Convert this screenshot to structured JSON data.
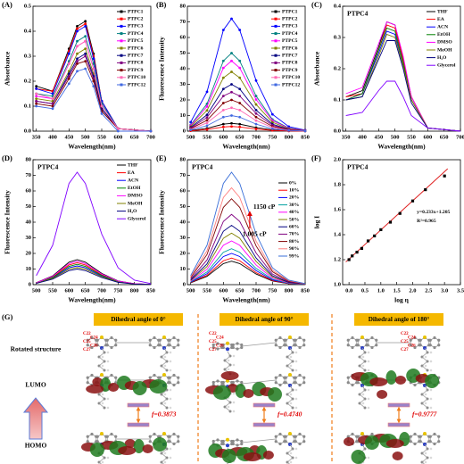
{
  "chart_data": [
    {
      "type": "line",
      "label": "(A)",
      "xlabel": "Wavelength(nm)",
      "ylabel": "Absorbance",
      "x": [
        350,
        400,
        450,
        475,
        500,
        525,
        550,
        600,
        700
      ],
      "xlim": [
        340,
        700
      ],
      "xticks": [
        350,
        400,
        450,
        500,
        550,
        600,
        650,
        700
      ],
      "ylim": [
        0,
        0.5
      ],
      "yticks": [
        {
          "value": 0,
          "label": "0.0"
        },
        0.1,
        0.2,
        0.3,
        0.4,
        0.5
      ],
      "markers": true,
      "legend": "upper right",
      "series": [
        {
          "name": "PTPC1",
          "color": "#000000",
          "values": [
            0.18,
            0.16,
            0.33,
            0.42,
            0.44,
            0.31,
            0.12,
            0.01,
            0
          ]
        },
        {
          "name": "PTPC2",
          "color": "#ff0000",
          "values": [
            0.17,
            0.16,
            0.32,
            0.41,
            0.43,
            0.3,
            0.12,
            0.01,
            0
          ]
        },
        {
          "name": "PTPC3",
          "color": "#0000ff",
          "values": [
            0.17,
            0.15,
            0.31,
            0.4,
            0.42,
            0.29,
            0.12,
            0.01,
            0
          ]
        },
        {
          "name": "PTPC4",
          "color": "#008080",
          "values": [
            0.15,
            0.14,
            0.28,
            0.36,
            0.38,
            0.27,
            0.11,
            0.01,
            0
          ]
        },
        {
          "name": "PTPC5",
          "color": "#ff00ff",
          "values": [
            0.14,
            0.13,
            0.27,
            0.34,
            0.36,
            0.25,
            0.1,
            0.01,
            0
          ]
        },
        {
          "name": "PTPC6",
          "color": "#808000",
          "values": [
            0.13,
            0.12,
            0.24,
            0.31,
            0.33,
            0.23,
            0.09,
            0.01,
            0
          ]
        },
        {
          "name": "PTPC7",
          "color": "#000080",
          "values": [
            0.12,
            0.11,
            0.23,
            0.29,
            0.31,
            0.22,
            0.09,
            0.01,
            0
          ]
        },
        {
          "name": "PTPC8",
          "color": "#800080",
          "values": [
            0.12,
            0.11,
            0.22,
            0.28,
            0.3,
            0.21,
            0.08,
            0.01,
            0
          ]
        },
        {
          "name": "PTPC9",
          "color": "#800000",
          "values": [
            0.11,
            0.1,
            0.21,
            0.27,
            0.28,
            0.2,
            0.08,
            0.01,
            0
          ]
        },
        {
          "name": "PTPC10",
          "color": "#ff69b4",
          "values": [
            0.15,
            0.13,
            0.27,
            0.34,
            0.36,
            0.25,
            0.1,
            0.01,
            0
          ]
        },
        {
          "name": "PTPC12",
          "color": "#4169e1",
          "values": [
            0.1,
            0.09,
            0.19,
            0.24,
            0.25,
            0.18,
            0.07,
            0,
            0
          ]
        }
      ]
    },
    {
      "type": "line",
      "label": "(B)",
      "xlabel": "Wavelength(nm)",
      "ylabel": "Fluorescence Intensity",
      "x": [
        500,
        550,
        600,
        625,
        650,
        700,
        750,
        800,
        850
      ],
      "xlim": [
        490,
        850
      ],
      "xticks": [
        500,
        550,
        600,
        650,
        700,
        750,
        800,
        850
      ],
      "ylim": [
        0,
        80
      ],
      "yticks": [
        0,
        10,
        20,
        30,
        40,
        50,
        60,
        70,
        80
      ],
      "markers": true,
      "legend": "upper right",
      "series": [
        {
          "name": "PTPC1",
          "color": "#000000",
          "values": [
            0.4,
            1.8,
            4.5,
            5,
            4.5,
            2.3,
            0.8,
            0.2,
            0.1
          ]
        },
        {
          "name": "PTPC2",
          "color": "#ff0000",
          "values": [
            0.2,
            1.1,
            2.7,
            3,
            2.7,
            1.4,
            0.5,
            0.1,
            0
          ]
        },
        {
          "name": "PTPC3",
          "color": "#0000ff",
          "values": [
            5.8,
            25.2,
            64.8,
            72,
            64.8,
            32.4,
            10.8,
            2.9,
            0.7
          ]
        },
        {
          "name": "PTPC4",
          "color": "#008080",
          "values": [
            4,
            17.5,
            45,
            50,
            45,
            22.5,
            7.5,
            2,
            0.5
          ]
        },
        {
          "name": "PTPC5",
          "color": "#ff00ff",
          "values": [
            3.6,
            15.8,
            40.5,
            45,
            40.5,
            20.3,
            6.8,
            1.8,
            0.5
          ]
        },
        {
          "name": "PTPC6",
          "color": "#808000",
          "values": [
            3,
            13.3,
            34.2,
            38,
            34.2,
            17.1,
            5.7,
            1.5,
            0.4
          ]
        },
        {
          "name": "PTPC7",
          "color": "#000080",
          "values": [
            2.4,
            10.5,
            27,
            30,
            27,
            13.5,
            4.5,
            1.2,
            0.3
          ]
        },
        {
          "name": "PTPC8",
          "color": "#800080",
          "values": [
            2,
            8.8,
            22.5,
            25,
            22.5,
            11.3,
            3.8,
            1,
            0.3
          ]
        },
        {
          "name": "PTPC9",
          "color": "#800000",
          "values": [
            1.6,
            7,
            18,
            20,
            18,
            9,
            3,
            0.8,
            0.2
          ]
        },
        {
          "name": "PTPC10",
          "color": "#ff69b4",
          "values": [
            1.2,
            5.3,
            13.5,
            15,
            13.5,
            6.8,
            2.3,
            0.6,
            0.2
          ]
        },
        {
          "name": "PTPC12",
          "color": "#4169e1",
          "values": [
            0.8,
            3.5,
            9,
            10,
            9,
            4.5,
            1.5,
            0.4,
            0.1
          ]
        }
      ]
    },
    {
      "type": "line",
      "label": "(C)",
      "subtitle": "PTPC4",
      "xlabel": "Wavelength(nm)",
      "ylabel": "Absorbance",
      "x": [
        350,
        400,
        450,
        475,
        500,
        525,
        550,
        600,
        700
      ],
      "xlim": [
        340,
        700
      ],
      "xticks": [
        350,
        400,
        450,
        500,
        550,
        600,
        650,
        700
      ],
      "ylim": [
        0,
        0.4
      ],
      "yticks": [
        {
          "value": 0,
          "label": "0.0"
        },
        0.1,
        0.2,
        0.3,
        0.4
      ],
      "markers": false,
      "legend": "upper right",
      "series": [
        {
          "name": "THF",
          "color": "#000000",
          "values": [
            0.11,
            0.13,
            0.27,
            0.35,
            0.34,
            0.23,
            0.11,
            0.01,
            0
          ]
        },
        {
          "name": "EA",
          "color": "#ff0000",
          "values": [
            0.11,
            0.12,
            0.26,
            0.34,
            0.33,
            0.23,
            0.11,
            0.01,
            0
          ]
        },
        {
          "name": "ACN",
          "color": "#0000ff",
          "values": [
            0.1,
            0.12,
            0.25,
            0.32,
            0.31,
            0.21,
            0.1,
            0.01,
            0
          ]
        },
        {
          "name": "EtOH",
          "color": "#008000",
          "values": [
            0.1,
            0.12,
            0.26,
            0.33,
            0.32,
            0.22,
            0.1,
            0.01,
            0
          ]
        },
        {
          "name": "DMSO",
          "color": "#ff00ff",
          "values": [
            0.12,
            0.14,
            0.28,
            0.35,
            0.34,
            0.24,
            0.11,
            0.01,
            0
          ]
        },
        {
          "name": "MeOH",
          "color": "#808000",
          "values": [
            0.1,
            0.11,
            0.24,
            0.31,
            0.3,
            0.21,
            0.1,
            0.01,
            0
          ]
        },
        {
          "name": "H₂O",
          "color": "#000080",
          "values": [
            0.1,
            0.11,
            0.23,
            0.29,
            0.29,
            0.2,
            0.09,
            0.01,
            0
          ]
        },
        {
          "name": "Glycerol",
          "color": "#8000ff",
          "values": [
            0.05,
            0.06,
            0.13,
            0.16,
            0.16,
            0.11,
            0.05,
            0.01,
            0
          ]
        }
      ]
    },
    {
      "type": "line",
      "label": "(D)",
      "subtitle": "PTPC4",
      "xlabel": "Wavelength(nm)",
      "ylabel": "Fluorescence Intensity",
      "x": [
        500,
        550,
        600,
        625,
        650,
        700,
        750,
        800,
        850
      ],
      "xlim": [
        490,
        850
      ],
      "xticks": [
        500,
        550,
        600,
        650,
        700,
        750,
        800,
        850
      ],
      "ylim": [
        0,
        80
      ],
      "yticks": [
        0,
        10,
        20,
        30,
        40,
        50,
        60,
        70,
        80
      ],
      "markers": false,
      "legend": "upper right",
      "series": [
        {
          "name": "THF",
          "color": "#000000",
          "values": [
            1.3,
            5.6,
            14.4,
            16,
            14.4,
            7.2,
            2.4,
            0.6,
            0.2
          ]
        },
        {
          "name": "EA",
          "color": "#ff0000",
          "values": [
            1.1,
            4.9,
            12.6,
            14,
            12.6,
            6.3,
            2.1,
            0.6,
            0.1
          ]
        },
        {
          "name": "ACN",
          "color": "#0000ff",
          "values": [
            1,
            4.2,
            10.8,
            12,
            10.8,
            5.4,
            1.8,
            0.5,
            0.1
          ]
        },
        {
          "name": "EtOH",
          "color": "#008000",
          "values": [
            1,
            4.6,
            11.7,
            13,
            11.7,
            5.9,
            2,
            0.5,
            0.1
          ]
        },
        {
          "name": "DMSO",
          "color": "#ff00ff",
          "values": [
            1.2,
            5.3,
            13.5,
            15,
            13.5,
            6.8,
            2.3,
            0.6,
            0.2
          ]
        },
        {
          "name": "MeOH",
          "color": "#808000",
          "values": [
            0.9,
            3.9,
            9.9,
            11,
            9.9,
            5,
            1.7,
            0.4,
            0.1
          ]
        },
        {
          "name": "H₂O",
          "color": "#000080",
          "values": [
            0.8,
            3.5,
            9,
            10,
            9,
            4.5,
            1.5,
            0.4,
            0.1
          ]
        },
        {
          "name": "Glycerol",
          "color": "#8000ff",
          "values": [
            5.8,
            25.2,
            64.8,
            72,
            64.8,
            32.4,
            10.8,
            2.9,
            0.7
          ]
        }
      ]
    },
    {
      "type": "line",
      "label": "(E)",
      "subtitle": "PTPC4",
      "xlabel": "Wavelength(nm)",
      "ylabel": "Fluorescence Intensity",
      "x": [
        500,
        550,
        600,
        625,
        650,
        700,
        750,
        800,
        850
      ],
      "xlim": [
        490,
        850
      ],
      "xticks": [
        500,
        550,
        600,
        650,
        700,
        750,
        800,
        850
      ],
      "ylim": [
        0,
        80
      ],
      "yticks": [
        0,
        10,
        20,
        30,
        40,
        50,
        60,
        70,
        80
      ],
      "markers": false,
      "legend": "right",
      "annotations": [
        "1150 cP",
        "1.005 cP"
      ],
      "series": [
        {
          "name": "0%",
          "color": "#000000",
          "values": [
            1.2,
            5.3,
            13.5,
            15,
            13.5,
            6.8,
            2.3,
            0.6,
            0.2
          ]
        },
        {
          "name": "10%",
          "color": "#ff0000",
          "values": [
            1.4,
            6,
            15.3,
            17,
            15.3,
            7.7,
            2.6,
            0.7,
            0.2
          ]
        },
        {
          "name": "20%",
          "color": "#0000ff",
          "values": [
            1.6,
            7,
            18,
            20,
            18,
            9,
            3,
            0.8,
            0.2
          ]
        },
        {
          "name": "30%",
          "color": "#00a0a0",
          "values": [
            1.8,
            8.1,
            20.7,
            23,
            20.7,
            10.4,
            3.5,
            0.9,
            0.2
          ]
        },
        {
          "name": "40%",
          "color": "#ff00ff",
          "values": [
            2.2,
            9.8,
            25.2,
            28,
            25.2,
            12.6,
            4.2,
            1.1,
            0.3
          ]
        },
        {
          "name": "50%",
          "color": "#808000",
          "values": [
            2.6,
            11.6,
            29.7,
            33,
            29.7,
            14.9,
            5,
            1.3,
            0.3
          ]
        },
        {
          "name": "60%",
          "color": "#000080",
          "values": [
            3,
            13.3,
            34.2,
            38,
            34.2,
            17.1,
            5.7,
            1.5,
            0.4
          ]
        },
        {
          "name": "70%",
          "color": "#800080",
          "values": [
            3.6,
            15.8,
            40.5,
            45,
            40.5,
            20.3,
            6.8,
            1.8,
            0.5
          ]
        },
        {
          "name": "80%",
          "color": "#800000",
          "values": [
            4.4,
            19.3,
            49.5,
            55,
            49.5,
            24.8,
            8.3,
            2.2,
            0.6
          ]
        },
        {
          "name": "90%",
          "color": "#ff8080",
          "values": [
            5,
            21.7,
            55.8,
            62,
            55.8,
            27.9,
            9.3,
            2.5,
            0.6
          ]
        },
        {
          "name": "99%",
          "color": "#3a6fd8",
          "values": [
            5.8,
            25.2,
            64.8,
            72,
            64.8,
            32.4,
            10.8,
            2.9,
            0.7
          ]
        }
      ]
    },
    {
      "type": "scatter",
      "label": "(F)",
      "subtitle": "PTPC4",
      "xlabel": "log η",
      "ylabel": "log I",
      "x": [
        0,
        0.1,
        0.25,
        0.4,
        0.6,
        0.8,
        1.0,
        1.3,
        1.6,
        2.0,
        2.4,
        3.0
      ],
      "values": [
        1.2,
        1.23,
        1.26,
        1.29,
        1.35,
        1.39,
        1.44,
        1.5,
        1.57,
        1.67,
        1.76,
        1.87
      ],
      "color": "#000000",
      "fit_color": "#e02020",
      "fit": {
        "slope": 0.233,
        "intercept": 1.205
      },
      "equation": "y=0.233x+1.205",
      "r2": "R²=0.965",
      "xlim": [
        -0.2,
        3.5
      ],
      "xticks": [
        {
          "value": 0,
          "label": "0.0"
        },
        0.5,
        {
          "value": 1,
          "label": "1.0"
        },
        1.5,
        {
          "value": 2,
          "label": "2.0"
        },
        2.5,
        {
          "value": 3,
          "label": "3.0"
        },
        3.5
      ],
      "ylim": [
        1.0,
        2.0
      ],
      "yticks": [
        {
          "value": 1,
          "label": "1.0"
        },
        1.2,
        1.4,
        1.6,
        1.8,
        {
          "value": 2,
          "label": "2.0"
        }
      ]
    }
  ],
  "panel_g": {
    "label": "(G)",
    "rows": [
      "Rotated structure",
      "LUMO",
      "HOMO"
    ],
    "columns": [
      {
        "title": "Dihedral angle of 0°",
        "atoms": [
          "C22",
          "C24",
          "C25",
          "C26",
          "C27"
        ],
        "f": "f=0.3873"
      },
      {
        "title": "Dihedral angle of 90°",
        "atoms": [
          "C22",
          "C24",
          "C25",
          "C26",
          "C27"
        ],
        "f": "f=0.4740"
      },
      {
        "title": "Dihedral angle of 180°",
        "atoms": [
          "C22",
          "C24",
          "C25",
          "C26",
          "C27"
        ],
        "f": "f=0.9777"
      }
    ]
  }
}
